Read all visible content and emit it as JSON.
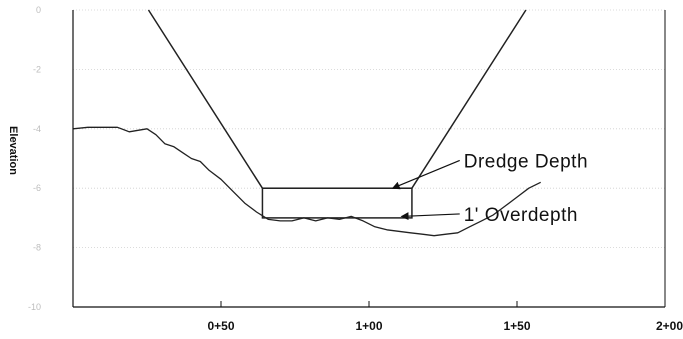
{
  "chart_data": {
    "type": "line",
    "ylabel": "Elevation",
    "xlabel": "",
    "xlim": [
      0,
      200
    ],
    "ylim": [
      -10,
      0
    ],
    "grid": true,
    "x_ticks": [
      {
        "value": 50,
        "label": "0+50"
      },
      {
        "value": 100,
        "label": "1+00"
      },
      {
        "value": 150,
        "label": "1+50"
      },
      {
        "value": 200,
        "label": "2+00"
      }
    ],
    "y_ticks": [
      {
        "value": 0,
        "label": "0"
      },
      {
        "value": -2,
        "label": "-2"
      },
      {
        "value": -4,
        "label": "-4"
      },
      {
        "value": -6,
        "label": "-6"
      },
      {
        "value": -8,
        "label": "-8"
      },
      {
        "value": -10,
        "label": "-10"
      }
    ],
    "series": [
      {
        "role": "existing-bottom-profile",
        "x": [
          0,
          5,
          10,
          15,
          19,
          22,
          25,
          28,
          31,
          34,
          37,
          40,
          43,
          46,
          50,
          54,
          58,
          62,
          66,
          70,
          74,
          78,
          82,
          86,
          90,
          94,
          98,
          102,
          106,
          110,
          114,
          118,
          122,
          126,
          130,
          134,
          138,
          142,
          146,
          150,
          154,
          158
        ],
        "y": [
          -4.0,
          -3.95,
          -3.95,
          -3.95,
          -4.1,
          -4.05,
          -4.0,
          -4.2,
          -4.5,
          -4.6,
          -4.8,
          -5.0,
          -5.1,
          -5.4,
          -5.7,
          -6.1,
          -6.5,
          -6.8,
          -7.05,
          -7.1,
          -7.1,
          -7.0,
          -7.1,
          -7.0,
          -7.05,
          -6.95,
          -7.1,
          -7.3,
          -7.4,
          -7.45,
          -7.5,
          -7.55,
          -7.6,
          -7.55,
          -7.5,
          -7.3,
          -7.1,
          -6.9,
          -6.6,
          -6.3,
          -6.0,
          -5.8
        ]
      },
      {
        "role": "dredge-template",
        "x": [
          25.5,
          64.0,
          114.5,
          153.0
        ],
        "y": [
          0,
          -6,
          -6,
          0
        ]
      }
    ],
    "rectangles": [
      {
        "role": "overdepth-box",
        "x0": 64.0,
        "x1": 114.5,
        "y_top": -6,
        "y_bottom": -7
      }
    ],
    "annotations": [
      {
        "text": "Dredge Depth",
        "text_x": 132,
        "text_y": -5.1,
        "arrow_to_x": 108,
        "arrow_to_y": -6.0
      },
      {
        "text": "1' Overdepth",
        "text_x": 132,
        "text_y": -6.9,
        "arrow_to_x": 111,
        "arrow_to_y": -6.95
      }
    ]
  }
}
